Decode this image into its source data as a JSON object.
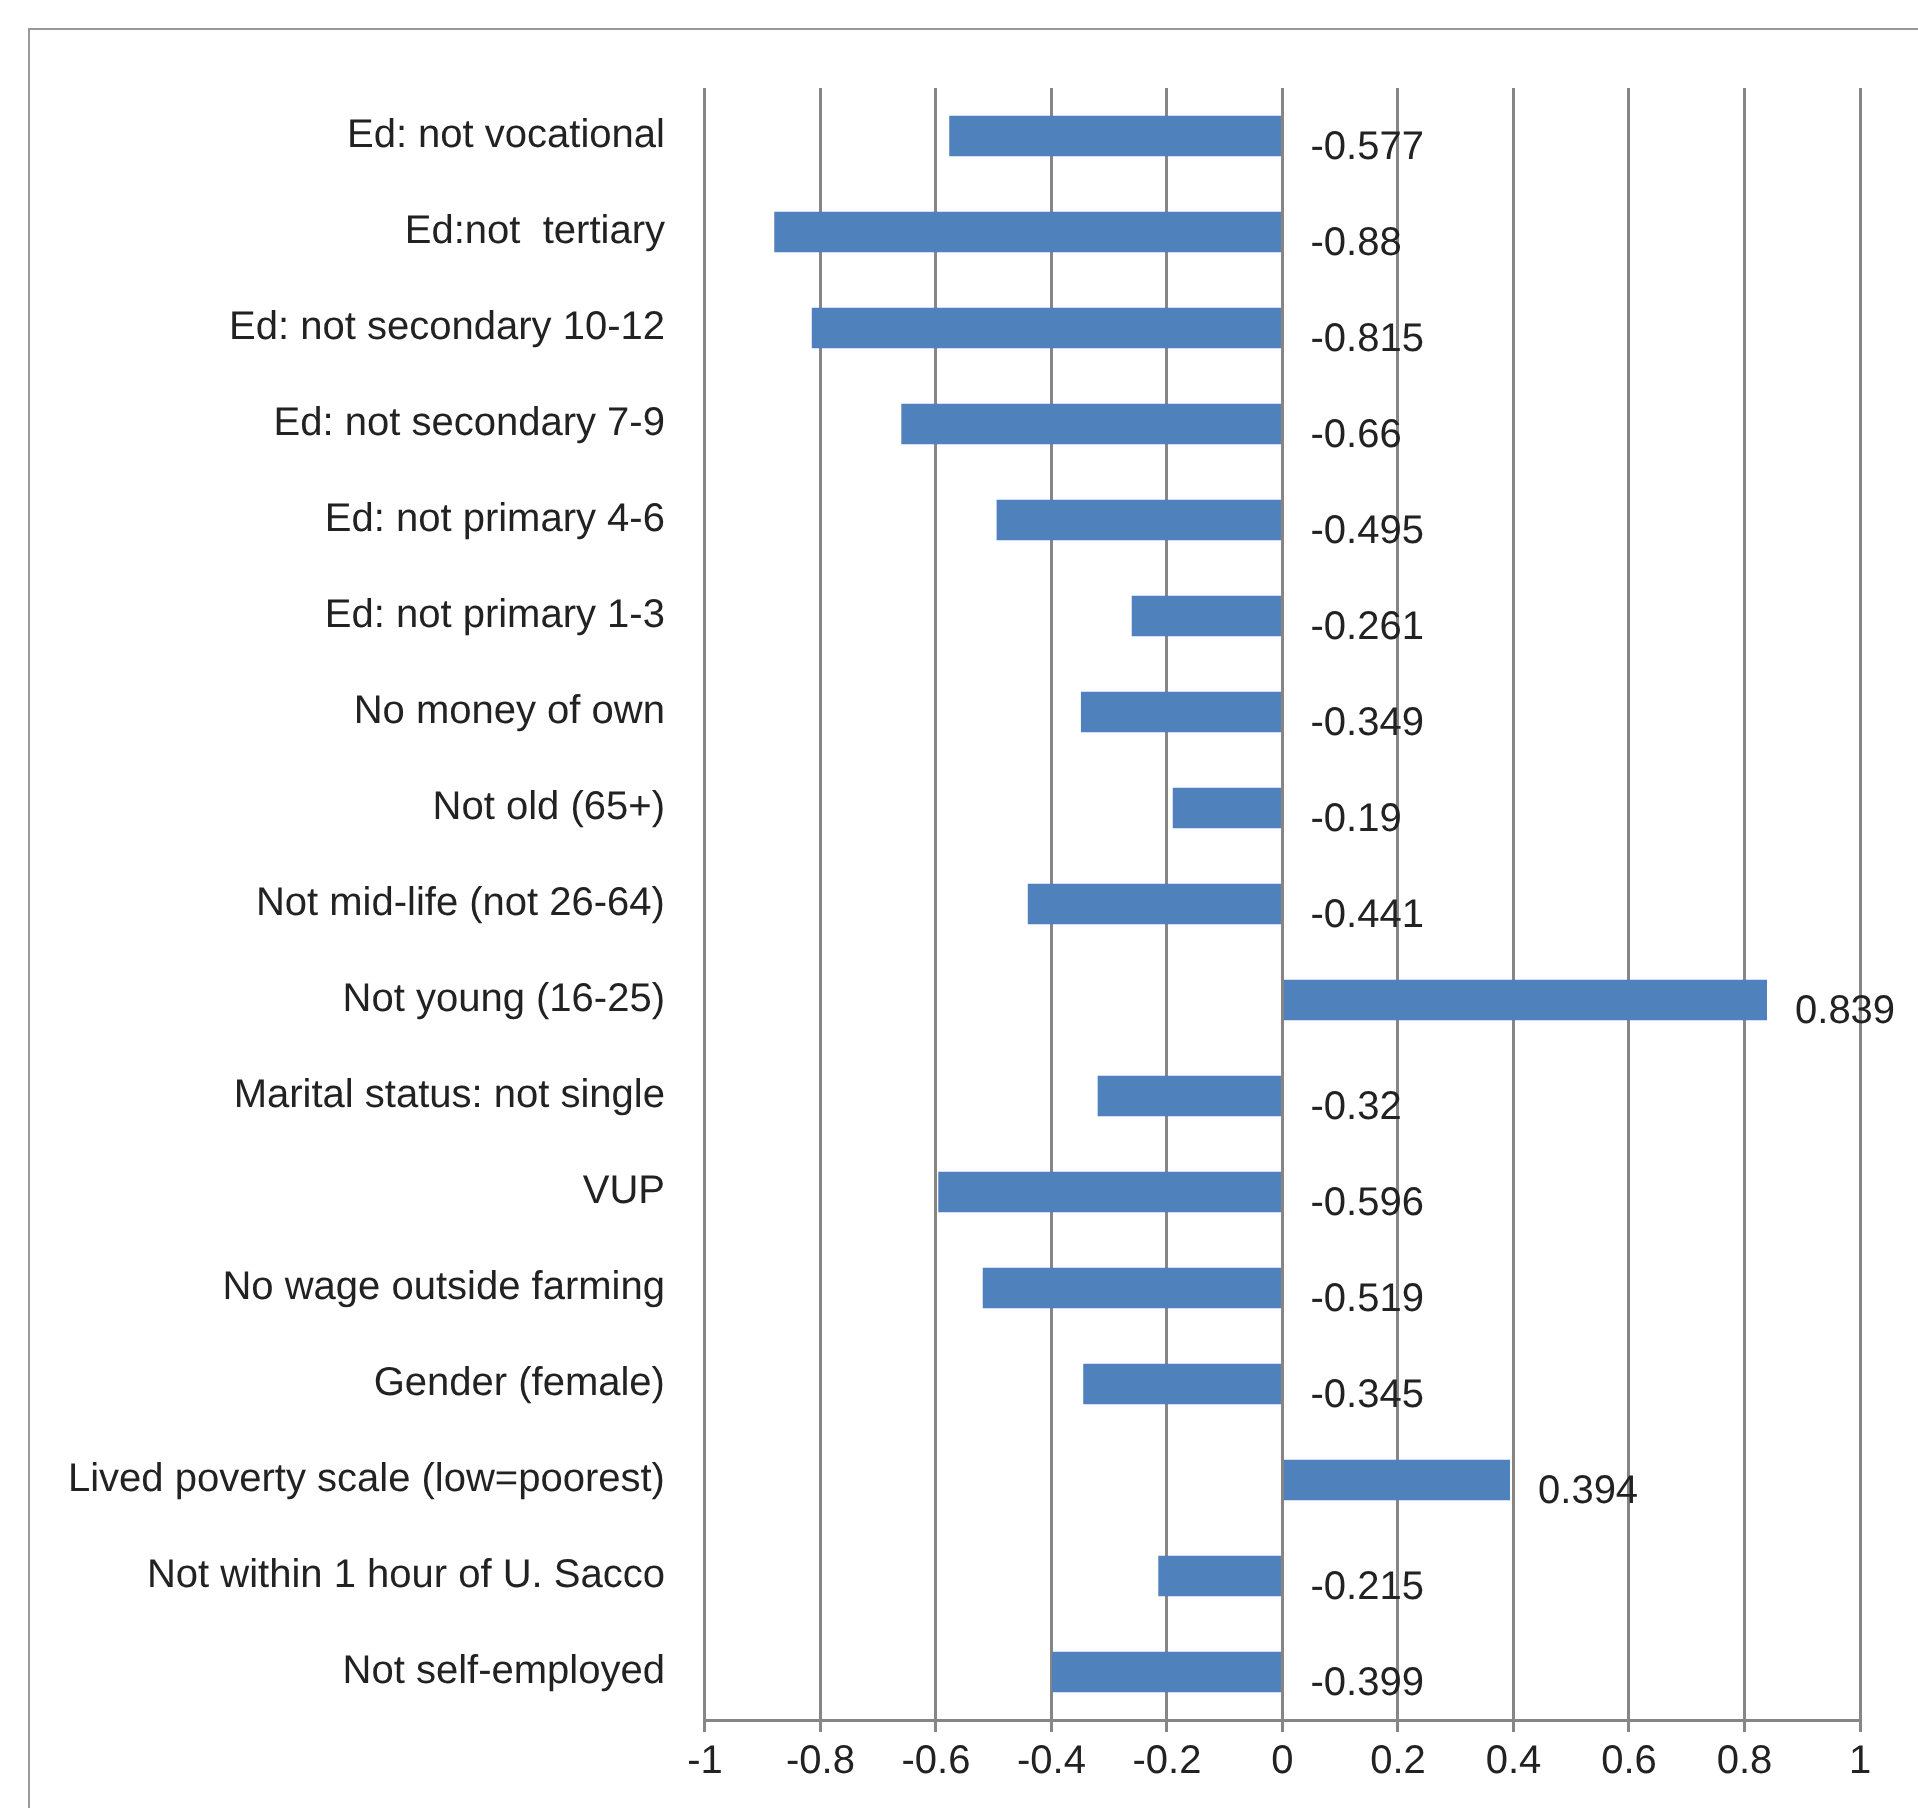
{
  "chart_data": {
    "type": "bar",
    "orientation": "horizontal",
    "categories": [
      "Ed: not vocational",
      "Ed:not  tertiary",
      "Ed: not secondary 10-12",
      "Ed: not secondary 7-9",
      "Ed: not primary 4-6",
      "Ed: not primary 1-3",
      "No money of own",
      "Not old (65+)",
      "Not mid-life (not 26-64)",
      "Not young (16-25)",
      "Marital status: not single",
      "VUP",
      "No wage outside farming",
      "Gender (female)",
      "Lived poverty scale (low=poorest)",
      "Not within 1 hour of U. Sacco",
      "Not self-employed"
    ],
    "values": [
      -0.577,
      -0.88,
      -0.815,
      -0.66,
      -0.495,
      -0.261,
      -0.349,
      -0.19,
      -0.441,
      0.839,
      -0.32,
      -0.596,
      -0.519,
      -0.345,
      0.394,
      -0.215,
      -0.399
    ],
    "color": "#4f81bd",
    "xlim": [
      -1,
      1
    ],
    "xticks": [
      -1,
      -0.8,
      -0.6,
      -0.4,
      -0.2,
      0,
      0.2,
      0.4,
      0.6,
      0.8,
      1
    ],
    "grid": "x",
    "legend": false,
    "data_labels": true
  }
}
